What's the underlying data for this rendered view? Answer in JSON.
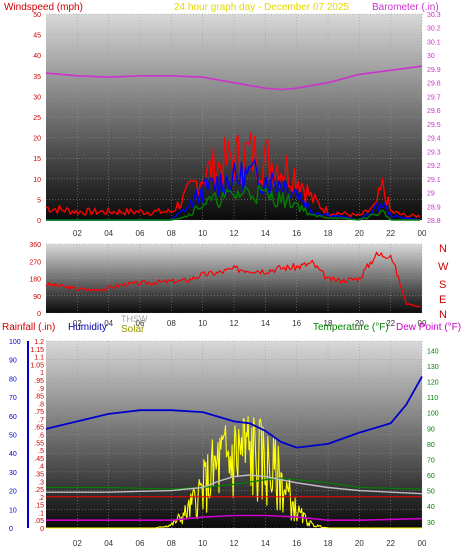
{
  "header": {
    "left_label": "Windspeed (mph)",
    "center_label": "24 hour graph day - December 07 2025",
    "right_label": "Barometer (.in)"
  },
  "compass_labels": [
    "N",
    "W",
    "S",
    "E",
    "N"
  ],
  "bottom_legend": {
    "rainfall": "Rainfall (.in)",
    "humidity": "Humidity",
    "thsw": "THSW",
    "solar": "Solar",
    "temperature": "Temperature (°F)",
    "dewpoint": "Dew Point (°F)"
  },
  "colors": {
    "wind_high": "#ff0000",
    "wind_avg": "#0000ff",
    "wind_low": "#008000",
    "barometer": "#cc33cc",
    "direction": "#ff0000",
    "rainfall": "#ff0000",
    "humidity": "#0000cc",
    "thsw": "#c0c0c0",
    "solar": "#ffff00",
    "temperature": "#008000",
    "dewpoint": "#cc00cc",
    "title": "#ffff00"
  },
  "chart_data": [
    {
      "type": "line",
      "x_ticks": [
        "02",
        "04",
        "06",
        "08",
        "10",
        "12",
        "14",
        "16",
        "18",
        "20",
        "22",
        "00"
      ],
      "y_left": {
        "label": "Windspeed (mph)",
        "ticks": [
          0,
          5,
          10,
          15,
          20,
          25,
          30,
          35,
          40,
          45,
          50
        ],
        "ylim": [
          0,
          50
        ]
      },
      "y_right": {
        "label": "Barometer (.in)",
        "ticks": [
          28.8,
          28.9,
          29.0,
          29.1,
          29.2,
          29.3,
          29.4,
          29.5,
          29.6,
          29.7,
          29.8,
          29.9,
          30.0,
          30.1,
          30.2,
          30.3
        ],
        "ylim": [
          28.8,
          30.3
        ]
      },
      "grid": true,
      "series": [
        {
          "name": "Barometer",
          "axis": "right",
          "x": [
            0,
            2,
            4,
            6,
            8,
            10,
            12,
            14,
            15,
            16,
            18,
            20,
            22,
            24
          ],
          "values": [
            29.87,
            29.85,
            29.84,
            29.85,
            29.85,
            29.84,
            29.8,
            29.76,
            29.75,
            29.76,
            29.8,
            29.86,
            29.89,
            29.92
          ]
        },
        {
          "name": "Wind High",
          "axis": "left",
          "x": [
            0,
            2,
            4,
            6,
            8,
            9,
            10,
            11,
            12,
            13,
            14,
            15,
            16,
            17,
            18,
            20,
            21,
            21.5,
            22,
            23,
            24
          ],
          "values": [
            3,
            2,
            2,
            2,
            2,
            6,
            11,
            13,
            15,
            16,
            15,
            13,
            11,
            5,
            2,
            1,
            3,
            8,
            2,
            1,
            1
          ]
        },
        {
          "name": "Wind Avg",
          "axis": "left",
          "x": [
            0,
            8,
            9,
            10,
            11,
            12,
            13,
            14,
            15,
            16,
            17,
            20,
            21.5,
            22,
            24
          ],
          "values": [
            0,
            0,
            3,
            7,
            9,
            10,
            11,
            10,
            9,
            7,
            2,
            0,
            4,
            1,
            0
          ]
        },
        {
          "name": "Wind Low",
          "axis": "left",
          "x": [
            0,
            8,
            9,
            10,
            11,
            12,
            13,
            14,
            15,
            16,
            17,
            20,
            21.5,
            22,
            24
          ],
          "values": [
            0,
            0,
            1,
            4,
            5,
            6,
            7,
            6,
            5,
            4,
            1,
            0,
            2,
            0,
            0
          ]
        }
      ]
    },
    {
      "type": "line",
      "x_ticks": [
        "02",
        "04",
        "06",
        "08",
        "10",
        "12",
        "14",
        "16",
        "18",
        "20",
        "22",
        "00"
      ],
      "y": {
        "ticks": [
          0,
          90,
          180,
          270,
          360
        ],
        "ylim": [
          0,
          360
        ]
      },
      "grid": true,
      "series": [
        {
          "name": "Wind Direction",
          "x": [
            0,
            1,
            2,
            3,
            4,
            5,
            6,
            7,
            8,
            9,
            10,
            11,
            12,
            13,
            14,
            15,
            16,
            17,
            18,
            19,
            20,
            21,
            22,
            23,
            24
          ],
          "values": [
            150,
            140,
            125,
            120,
            130,
            150,
            155,
            160,
            165,
            170,
            200,
            210,
            230,
            225,
            220,
            235,
            240,
            260,
            175,
            170,
            180,
            300,
            310,
            50,
            30
          ]
        }
      ]
    },
    {
      "type": "line",
      "x_ticks": [
        "02",
        "04",
        "06",
        "08",
        "10",
        "12",
        "14",
        "16",
        "18",
        "20",
        "22",
        "00"
      ],
      "y_rain": {
        "label": "Rainfall (.in)",
        "ticks": [
          0,
          0.05,
          0.1,
          0.15,
          0.2,
          0.25,
          0.3,
          0.35,
          0.4,
          0.45,
          0.5,
          0.55,
          0.6,
          0.65,
          0.7,
          0.75,
          0.8,
          0.85,
          0.9,
          0.95,
          1.0,
          1.05,
          1.1,
          1.15,
          1.2
        ],
        "ylim": [
          0,
          1.2
        ]
      },
      "y_humidity": {
        "label": "Humidity",
        "ticks": [
          0,
          10,
          20,
          30,
          40,
          50,
          60,
          70,
          80,
          90,
          100
        ],
        "ylim": [
          0,
          100
        ]
      },
      "y_temp": {
        "label": "Temperature (°F)",
        "ticks": [
          30,
          40,
          50,
          60,
          70,
          80,
          90,
          100,
          110,
          120,
          130,
          140
        ],
        "ylim": [
          26,
          146
        ]
      },
      "grid": true,
      "series": [
        {
          "name": "Humidity",
          "axis": "humidity",
          "x": [
            0,
            2,
            4,
            6,
            8,
            10,
            12,
            13,
            14,
            15,
            16,
            18,
            20,
            22,
            23,
            24
          ],
          "values": [
            53,
            57,
            61,
            63,
            63,
            62,
            57,
            56,
            52,
            46,
            43,
            45,
            51,
            56,
            66,
            81
          ]
        },
        {
          "name": "THSW",
          "axis": "temp",
          "x": [
            0,
            4,
            8,
            10,
            11,
            12,
            13,
            14,
            15,
            16,
            18,
            20,
            24
          ],
          "values": [
            49,
            49,
            50,
            52,
            56,
            59,
            60,
            59,
            57,
            55,
            52,
            50,
            48
          ]
        },
        {
          "name": "Temperature",
          "axis": "temp",
          "x": [
            0,
            4,
            8,
            10,
            12,
            14,
            15,
            16,
            18,
            20,
            24
          ],
          "values": [
            52,
            52,
            51,
            52,
            54,
            57,
            58,
            57,
            55,
            52,
            51
          ]
        },
        {
          "name": "Dew Point",
          "axis": "temp",
          "x": [
            0,
            4,
            8,
            10,
            12,
            14,
            16,
            18,
            20,
            24
          ],
          "values": [
            31,
            31,
            31,
            33,
            34,
            34,
            33,
            31,
            31,
            32
          ]
        },
        {
          "name": "Solar",
          "axis": "rain",
          "x": [
            0,
            7,
            8,
            9,
            10,
            11,
            12,
            12.5,
            13,
            14,
            15,
            16,
            17,
            18,
            24
          ],
          "values": [
            0,
            0,
            0.02,
            0.1,
            0.25,
            0.4,
            0.45,
            0.5,
            0.48,
            0.4,
            0.3,
            0.1,
            0.02,
            0,
            0
          ]
        },
        {
          "name": "Rainfall",
          "axis": "rain",
          "x": [
            0,
            24
          ],
          "values": [
            0.2,
            0.2
          ]
        }
      ]
    }
  ]
}
